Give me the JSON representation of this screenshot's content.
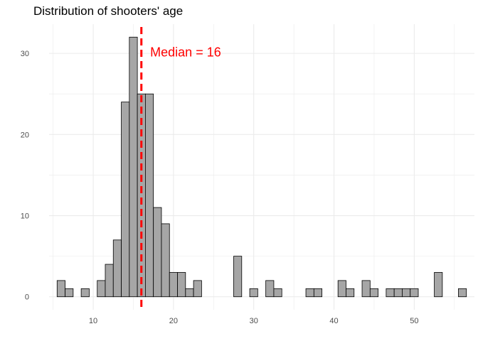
{
  "chart_data": {
    "type": "bar",
    "title": "Distribution of shooters' age",
    "xlabel": "",
    "ylabel": "",
    "x": [
      6,
      7,
      8,
      9,
      10,
      11,
      12,
      13,
      14,
      15,
      16,
      17,
      18,
      19,
      20,
      21,
      22,
      23,
      24,
      25,
      26,
      27,
      28,
      29,
      30,
      31,
      32,
      33,
      34,
      35,
      36,
      37,
      38,
      39,
      40,
      41,
      42,
      43,
      44,
      45,
      46,
      47,
      48,
      49,
      50,
      51,
      52,
      53,
      54,
      55,
      56
    ],
    "values": [
      2,
      1,
      0,
      1,
      0,
      2,
      4,
      7,
      24,
      32,
      25,
      25,
      11,
      9,
      3,
      3,
      1,
      2,
      0,
      0,
      0,
      0,
      5,
      0,
      1,
      0,
      2,
      1,
      0,
      0,
      0,
      1,
      1,
      0,
      0,
      2,
      1,
      0,
      2,
      1,
      0,
      1,
      1,
      1,
      1,
      0,
      0,
      3,
      0,
      0,
      1
    ],
    "xlim": [
      4.5,
      57.5
    ],
    "ylim": [
      -1.6,
      33.6
    ],
    "x_ticks": [
      10,
      20,
      30,
      40,
      50
    ],
    "x_tick_labels": [
      "10",
      "20",
      "30",
      "40",
      "50"
    ],
    "y_ticks": [
      0,
      10,
      20,
      30
    ],
    "y_tick_labels": [
      "0",
      "10",
      "20",
      "30"
    ],
    "median_line": {
      "x": 16,
      "label": "Median = 16",
      "color": "#ff0000"
    },
    "bar_fill": "#a6a6a6",
    "bar_stroke": "#000000",
    "grid": true,
    "grid_color": "#ebebeb"
  }
}
